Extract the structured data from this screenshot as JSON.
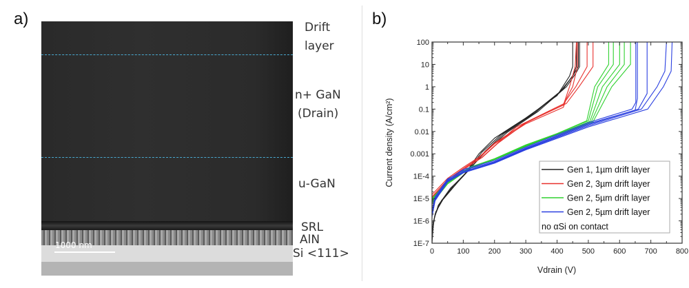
{
  "panel_a": {
    "label": "a)",
    "layers": [
      "Drift",
      "layer",
      "n+ GaN",
      "(Drain)",
      "u-GaN",
      "SRL",
      "AlN",
      "Si <111>"
    ],
    "scale_bar": "1000 nm",
    "dash_color": "#49a9d0"
  },
  "panel_b": {
    "label": "b)"
  },
  "chart_data": {
    "type": "line",
    "xlabel": "Vdrain (V)",
    "ylabel": "Current density (A/cm²)",
    "xlim": [
      0,
      800
    ],
    "ylim": [
      1e-07,
      100
    ],
    "yscale": "log",
    "xticks": [
      "0",
      "100",
      "200",
      "300",
      "400",
      "500",
      "600",
      "700",
      "800"
    ],
    "yticks": [
      "1E-7",
      "1E-6",
      "1E-5",
      "1E-4",
      "0.001",
      "0.01",
      "0.1",
      "1",
      "10",
      "100"
    ],
    "grid": false,
    "legend_placement": "lower-right",
    "legend_note": "no αSi on contact",
    "series": [
      {
        "name": "Gen 1, 1µm drift layer",
        "color": "#222222",
        "curves": [
          [
            [
              0,
              1e-07
            ],
            [
              5,
              1e-06
            ],
            [
              20,
              5e-06
            ],
            [
              60,
              3e-05
            ],
            [
              100,
              0.0001
            ],
            [
              150,
              0.001
            ],
            [
              200,
              0.005
            ],
            [
              300,
              0.04
            ],
            [
              400,
              0.4
            ],
            [
              440,
              3
            ],
            [
              450,
              8
            ],
            [
              450,
              100
            ]
          ],
          [
            [
              0,
              2e-07
            ],
            [
              8,
              1.5e-06
            ],
            [
              25,
              6e-06
            ],
            [
              70,
              4e-05
            ],
            [
              110,
              0.00015
            ],
            [
              160,
              0.0012
            ],
            [
              220,
              0.007
            ],
            [
              320,
              0.06
            ],
            [
              410,
              0.6
            ],
            [
              450,
              3
            ],
            [
              462,
              8
            ],
            [
              462,
              100
            ]
          ],
          [
            [
              0,
              3e-07
            ],
            [
              10,
              2e-06
            ],
            [
              30,
              8e-06
            ],
            [
              80,
              5e-05
            ],
            [
              120,
              0.0002
            ],
            [
              170,
              0.0013
            ],
            [
              230,
              0.008
            ],
            [
              330,
              0.07
            ],
            [
              420,
              0.8
            ],
            [
              455,
              4
            ],
            [
              468,
              8
            ],
            [
              468,
              100
            ]
          ],
          [
            [
              0,
              4e-07
            ],
            [
              12,
              2.5e-06
            ],
            [
              35,
              9e-06
            ],
            [
              85,
              6e-05
            ],
            [
              125,
              0.00025
            ],
            [
              175,
              0.0014
            ],
            [
              240,
              0.009
            ],
            [
              340,
              0.08
            ],
            [
              430,
              1
            ],
            [
              460,
              4
            ],
            [
              472,
              8
            ],
            [
              472,
              100
            ]
          ]
        ]
      },
      {
        "name": "Gen 2, 3µm drift layer",
        "color": "#e8302c",
        "curves": [
          [
            [
              0,
              1.5e-05
            ],
            [
              50,
              8e-05
            ],
            [
              100,
              0.00025
            ],
            [
              150,
              0.0007
            ],
            [
              200,
              0.003
            ],
            [
              300,
              0.025
            ],
            [
              420,
              0.15
            ],
            [
              440,
              1
            ],
            [
              458,
              8
            ],
            [
              462,
              100
            ]
          ],
          [
            [
              0,
              1.2e-05
            ],
            [
              50,
              7e-05
            ],
            [
              100,
              0.00022
            ],
            [
              150,
              0.00065
            ],
            [
              200,
              0.0028
            ],
            [
              300,
              0.022
            ],
            [
              420,
              0.12
            ],
            [
              430,
              0.3
            ],
            [
              450,
              1
            ],
            [
              465,
              8
            ],
            [
              465,
              100
            ]
          ],
          [
            [
              0,
              1.1e-05
            ],
            [
              50,
              6e-05
            ],
            [
              110,
              0.00025
            ],
            [
              160,
              0.0007
            ],
            [
              210,
              0.003
            ],
            [
              270,
              0.016
            ],
            [
              420,
              0.17
            ],
            [
              460,
              1
            ],
            [
              496,
              8
            ],
            [
              496,
              100
            ]
          ],
          [
            [
              0,
              1e-05
            ],
            [
              50,
              6e-05
            ],
            [
              110,
              0.00024
            ],
            [
              160,
              0.00068
            ],
            [
              210,
              0.0029
            ],
            [
              300,
              0.024
            ],
            [
              430,
              0.18
            ],
            [
              470,
              1
            ],
            [
              515,
              8
            ],
            [
              515,
              100
            ]
          ]
        ]
      },
      {
        "name": "Gen 2, 5µm drift layer",
        "color": "#2fd12f",
        "curves": [
          [
            [
              0,
              1e-05
            ],
            [
              50,
              6e-05
            ],
            [
              120,
              0.00025
            ],
            [
              200,
              0.0006
            ],
            [
              300,
              0.0025
            ],
            [
              400,
              0.008
            ],
            [
              495,
              0.03
            ],
            [
              520,
              1
            ],
            [
              565,
              10
            ],
            [
              565,
              100
            ]
          ],
          [
            [
              0,
              9e-06
            ],
            [
              50,
              5.5e-05
            ],
            [
              120,
              0.00024
            ],
            [
              200,
              0.0006
            ],
            [
              300,
              0.0024
            ],
            [
              400,
              0.008
            ],
            [
              500,
              0.03
            ],
            [
              530,
              1
            ],
            [
              580,
              10
            ],
            [
              580,
              100
            ]
          ],
          [
            [
              0,
              8e-06
            ],
            [
              50,
              5e-05
            ],
            [
              120,
              0.00023
            ],
            [
              200,
              0.00058
            ],
            [
              300,
              0.0023
            ],
            [
              400,
              0.0075
            ],
            [
              505,
              0.028
            ],
            [
              545,
              1
            ],
            [
              600,
              10
            ],
            [
              600,
              100
            ]
          ],
          [
            [
              0,
              7e-06
            ],
            [
              50,
              5e-05
            ],
            [
              120,
              0.00023
            ],
            [
              200,
              0.00056
            ],
            [
              300,
              0.0022
            ],
            [
              400,
              0.007
            ],
            [
              510,
              0.028
            ],
            [
              560,
              1
            ],
            [
              615,
              10
            ],
            [
              615,
              100
            ]
          ],
          [
            [
              0,
              6e-06
            ],
            [
              50,
              4.5e-05
            ],
            [
              120,
              0.00022
            ],
            [
              200,
              0.00055
            ],
            [
              300,
              0.0021
            ],
            [
              400,
              0.007
            ],
            [
              515,
              0.027
            ],
            [
              575,
              1
            ],
            [
              635,
              10
            ],
            [
              635,
              100
            ]
          ]
        ]
      },
      {
        "name": "Gen 2, 5µm drift layer",
        "color": "#2a3fe0",
        "curves": [
          [
            [
              0,
              2e-06
            ],
            [
              10,
              1e-05
            ],
            [
              50,
              7e-05
            ],
            [
              100,
              0.0002
            ],
            [
              200,
              0.0005
            ],
            [
              300,
              0.002
            ],
            [
              500,
              0.025
            ],
            [
              640,
              0.1
            ],
            [
              652,
              0.2
            ],
            [
              652,
              100
            ]
          ],
          [
            [
              0,
              3e-06
            ],
            [
              10,
              1.2e-05
            ],
            [
              50,
              7.5e-05
            ],
            [
              100,
              0.00018
            ],
            [
              200,
              0.00045
            ],
            [
              300,
              0.0018
            ],
            [
              500,
              0.022
            ],
            [
              650,
              0.09
            ],
            [
              657,
              0.3
            ],
            [
              657,
              100
            ]
          ],
          [
            [
              0,
              2.5e-06
            ],
            [
              10,
              1e-05
            ],
            [
              50,
              6.5e-05
            ],
            [
              100,
              0.00016
            ],
            [
              200,
              0.00042
            ],
            [
              300,
              0.0017
            ],
            [
              500,
              0.02
            ],
            [
              660,
              0.1
            ],
            [
              688,
              0.5
            ],
            [
              688,
              100
            ]
          ],
          [
            [
              0,
              2e-06
            ],
            [
              10,
              9e-06
            ],
            [
              50,
              6e-05
            ],
            [
              100,
              0.00015
            ],
            [
              200,
              0.0004
            ],
            [
              300,
              0.0016
            ],
            [
              500,
              0.018
            ],
            [
              670,
              0.1
            ],
            [
              720,
              1
            ],
            [
              745,
              5
            ],
            [
              750,
              100
            ]
          ],
          [
            [
              0,
              1.5e-06
            ],
            [
              10,
              8e-06
            ],
            [
              50,
              5.5e-05
            ],
            [
              100,
              0.00014
            ],
            [
              200,
              0.00038
            ],
            [
              300,
              0.0015
            ],
            [
              500,
              0.016
            ],
            [
              690,
              0.1
            ],
            [
              740,
              1
            ],
            [
              765,
              5
            ],
            [
              768,
              100
            ]
          ]
        ]
      }
    ]
  }
}
